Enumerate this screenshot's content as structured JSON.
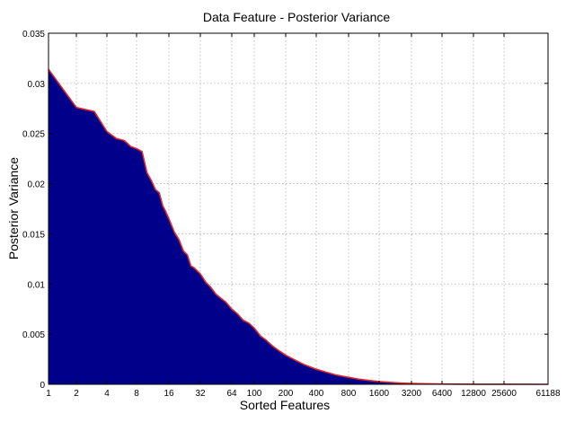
{
  "chart_data": {
    "type": "area",
    "title": "Data Feature - Posterior Variance",
    "xlabel": "Sorted Features",
    "ylabel": "Posterior Variance",
    "x_scale": "log2",
    "xlim": [
      1,
      61188
    ],
    "ylim": [
      0,
      0.035
    ],
    "grid": true,
    "x_ticks": [
      1,
      2,
      4,
      8,
      16,
      32,
      64,
      100,
      200,
      400,
      800,
      1600,
      3200,
      6400,
      12800,
      25600,
      61188
    ],
    "x_tick_labels": [
      "1",
      "2",
      "4",
      "8",
      "16",
      "32",
      "64",
      "100",
      "200",
      "400",
      "800",
      "1600",
      "3200",
      "6400",
      "12800",
      "25600",
      "61188"
    ],
    "y_ticks": [
      0,
      0.005,
      0.01,
      0.015,
      0.02,
      0.025,
      0.03,
      0.035
    ],
    "y_tick_labels": [
      "0",
      "0.005",
      "0.01",
      "0.015",
      "0.02",
      "0.025",
      "0.03",
      "0.035"
    ],
    "fill_color": "#00008b",
    "line_color": "#e0282e",
    "series": [
      {
        "x": [
          1,
          2,
          3,
          4,
          5,
          6,
          7,
          8,
          9,
          10,
          11,
          12,
          13,
          14,
          15,
          16,
          18,
          20,
          22,
          24,
          26,
          28,
          30,
          32,
          36,
          40,
          45,
          50,
          56,
          64,
          72,
          80,
          90,
          100,
          115,
          130,
          150,
          175,
          200,
          250,
          300,
          400,
          500,
          600,
          800,
          1000,
          1300,
          1600,
          2000,
          2500,
          3200,
          4000,
          6400,
          12800,
          25600,
          61188
        ],
        "values": [
          0.0314,
          0.0276,
          0.0272,
          0.0252,
          0.0245,
          0.0243,
          0.0237,
          0.0235,
          0.0232,
          0.0211,
          0.0203,
          0.0194,
          0.0191,
          0.0178,
          0.0172,
          0.0165,
          0.0152,
          0.0144,
          0.0133,
          0.0129,
          0.0118,
          0.0116,
          0.0113,
          0.011,
          0.0102,
          0.0097,
          0.009,
          0.0086,
          0.0082,
          0.0075,
          0.007,
          0.0064,
          0.0061,
          0.0056,
          0.0048,
          0.0044,
          0.0038,
          0.0033,
          0.0029,
          0.0024,
          0.002,
          0.0015,
          0.0012,
          0.00095,
          0.0007,
          0.00052,
          0.00038,
          0.00028,
          0.0002,
          0.00013,
          9e-05,
          6e-05,
          3e-05,
          1e-05,
          5e-06,
          0
        ]
      }
    ]
  }
}
